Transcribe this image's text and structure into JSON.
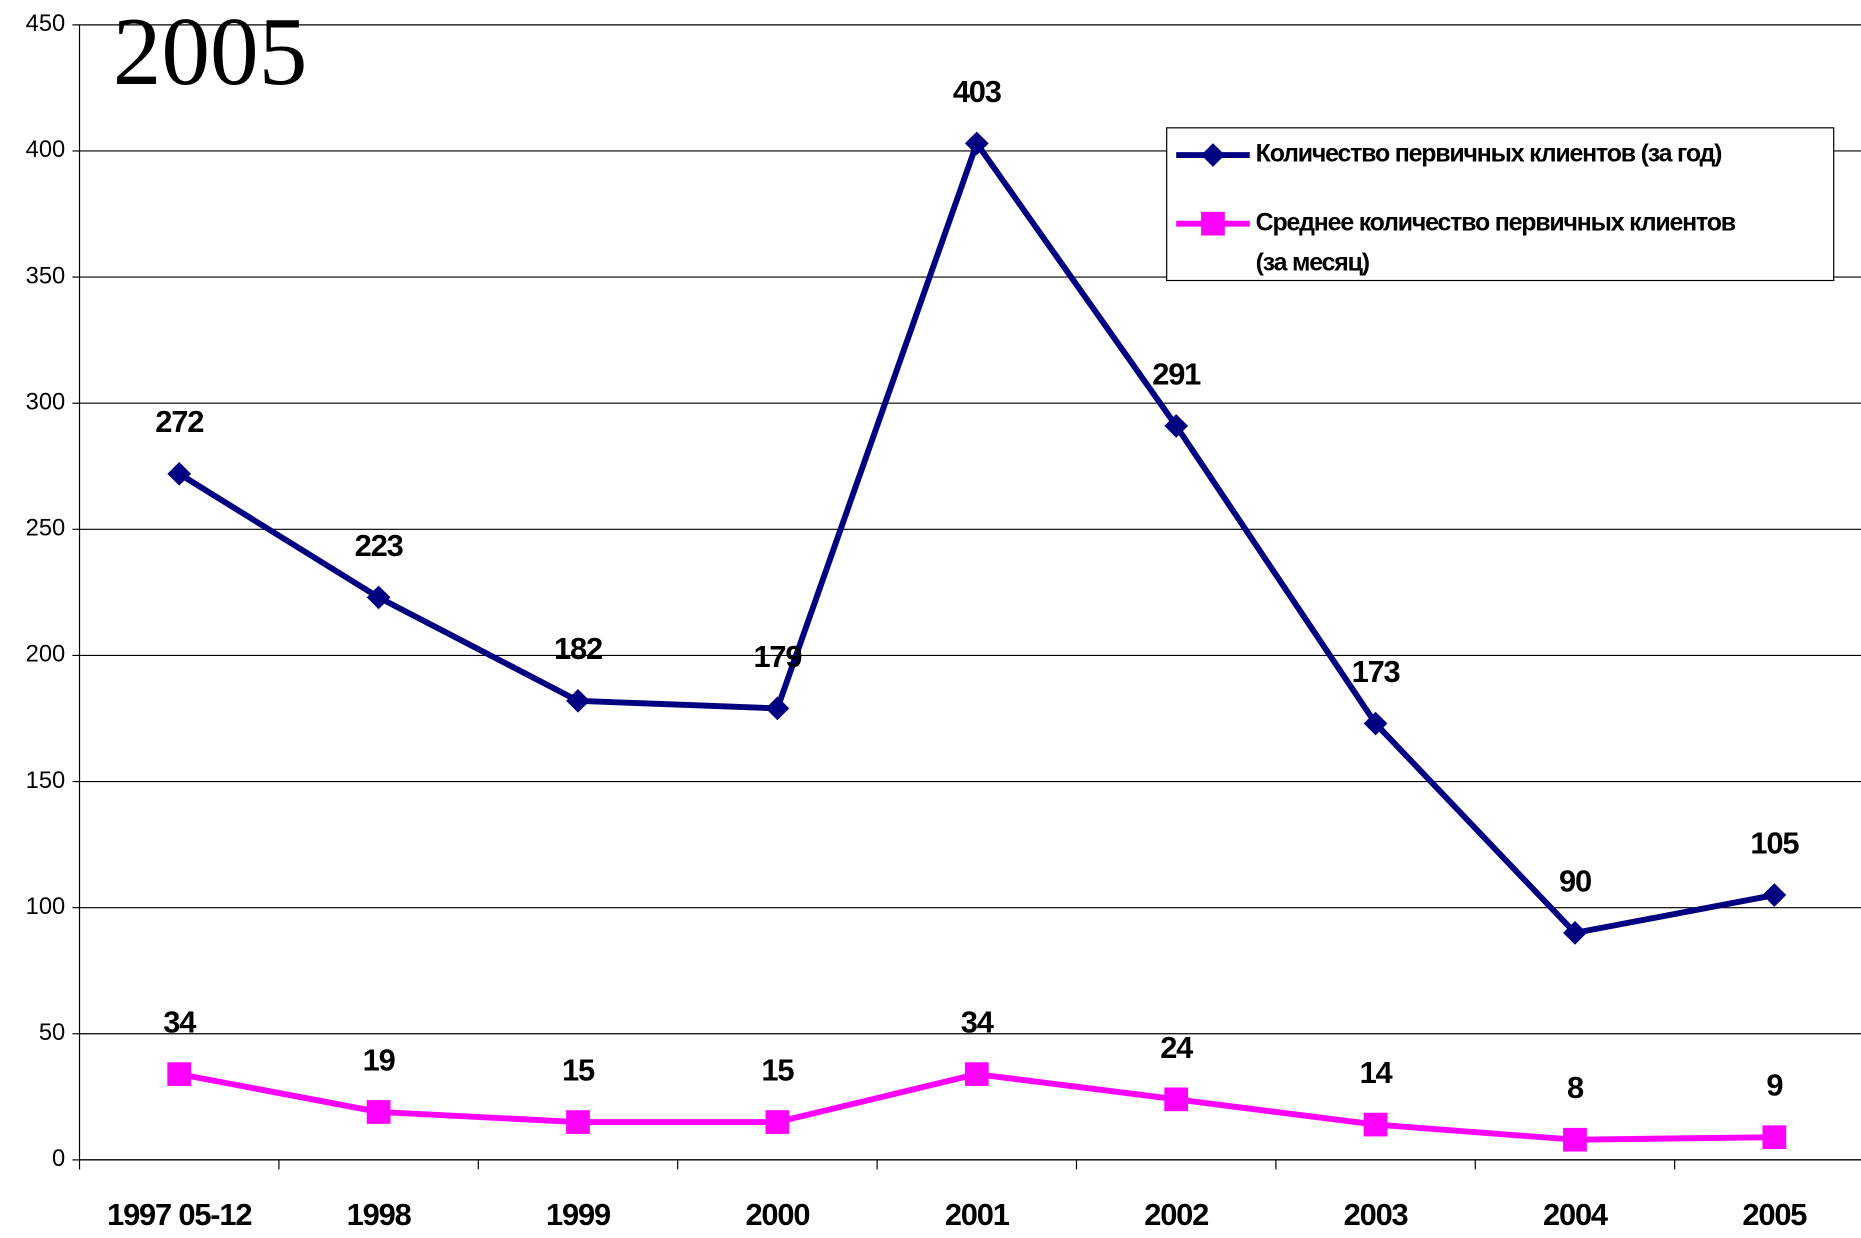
{
  "chart_data": {
    "type": "line",
    "title": "2005",
    "categories": [
      "1997 05-12",
      "1998",
      "1999",
      "2000",
      "2001",
      "2002",
      "2003",
      "2004",
      "2005"
    ],
    "series": [
      {
        "name": "Количество первичных клиентов (за год)",
        "color": "#000080",
        "marker": "diamond",
        "values": [
          272,
          223,
          182,
          179,
          403,
          291,
          173,
          90,
          105
        ]
      },
      {
        "name": [
          "Среднее количество первичных клиентов",
          "(за месяц)"
        ],
        "color": "#ff00ff",
        "marker": "square",
        "values": [
          34,
          19,
          15,
          15,
          34,
          24,
          14,
          8,
          9
        ]
      }
    ],
    "ylim": [
      0,
      450
    ],
    "yticks": [
      0,
      50,
      100,
      150,
      200,
      250,
      300,
      350,
      400,
      450
    ],
    "grid": true,
    "legend": "upper right"
  }
}
